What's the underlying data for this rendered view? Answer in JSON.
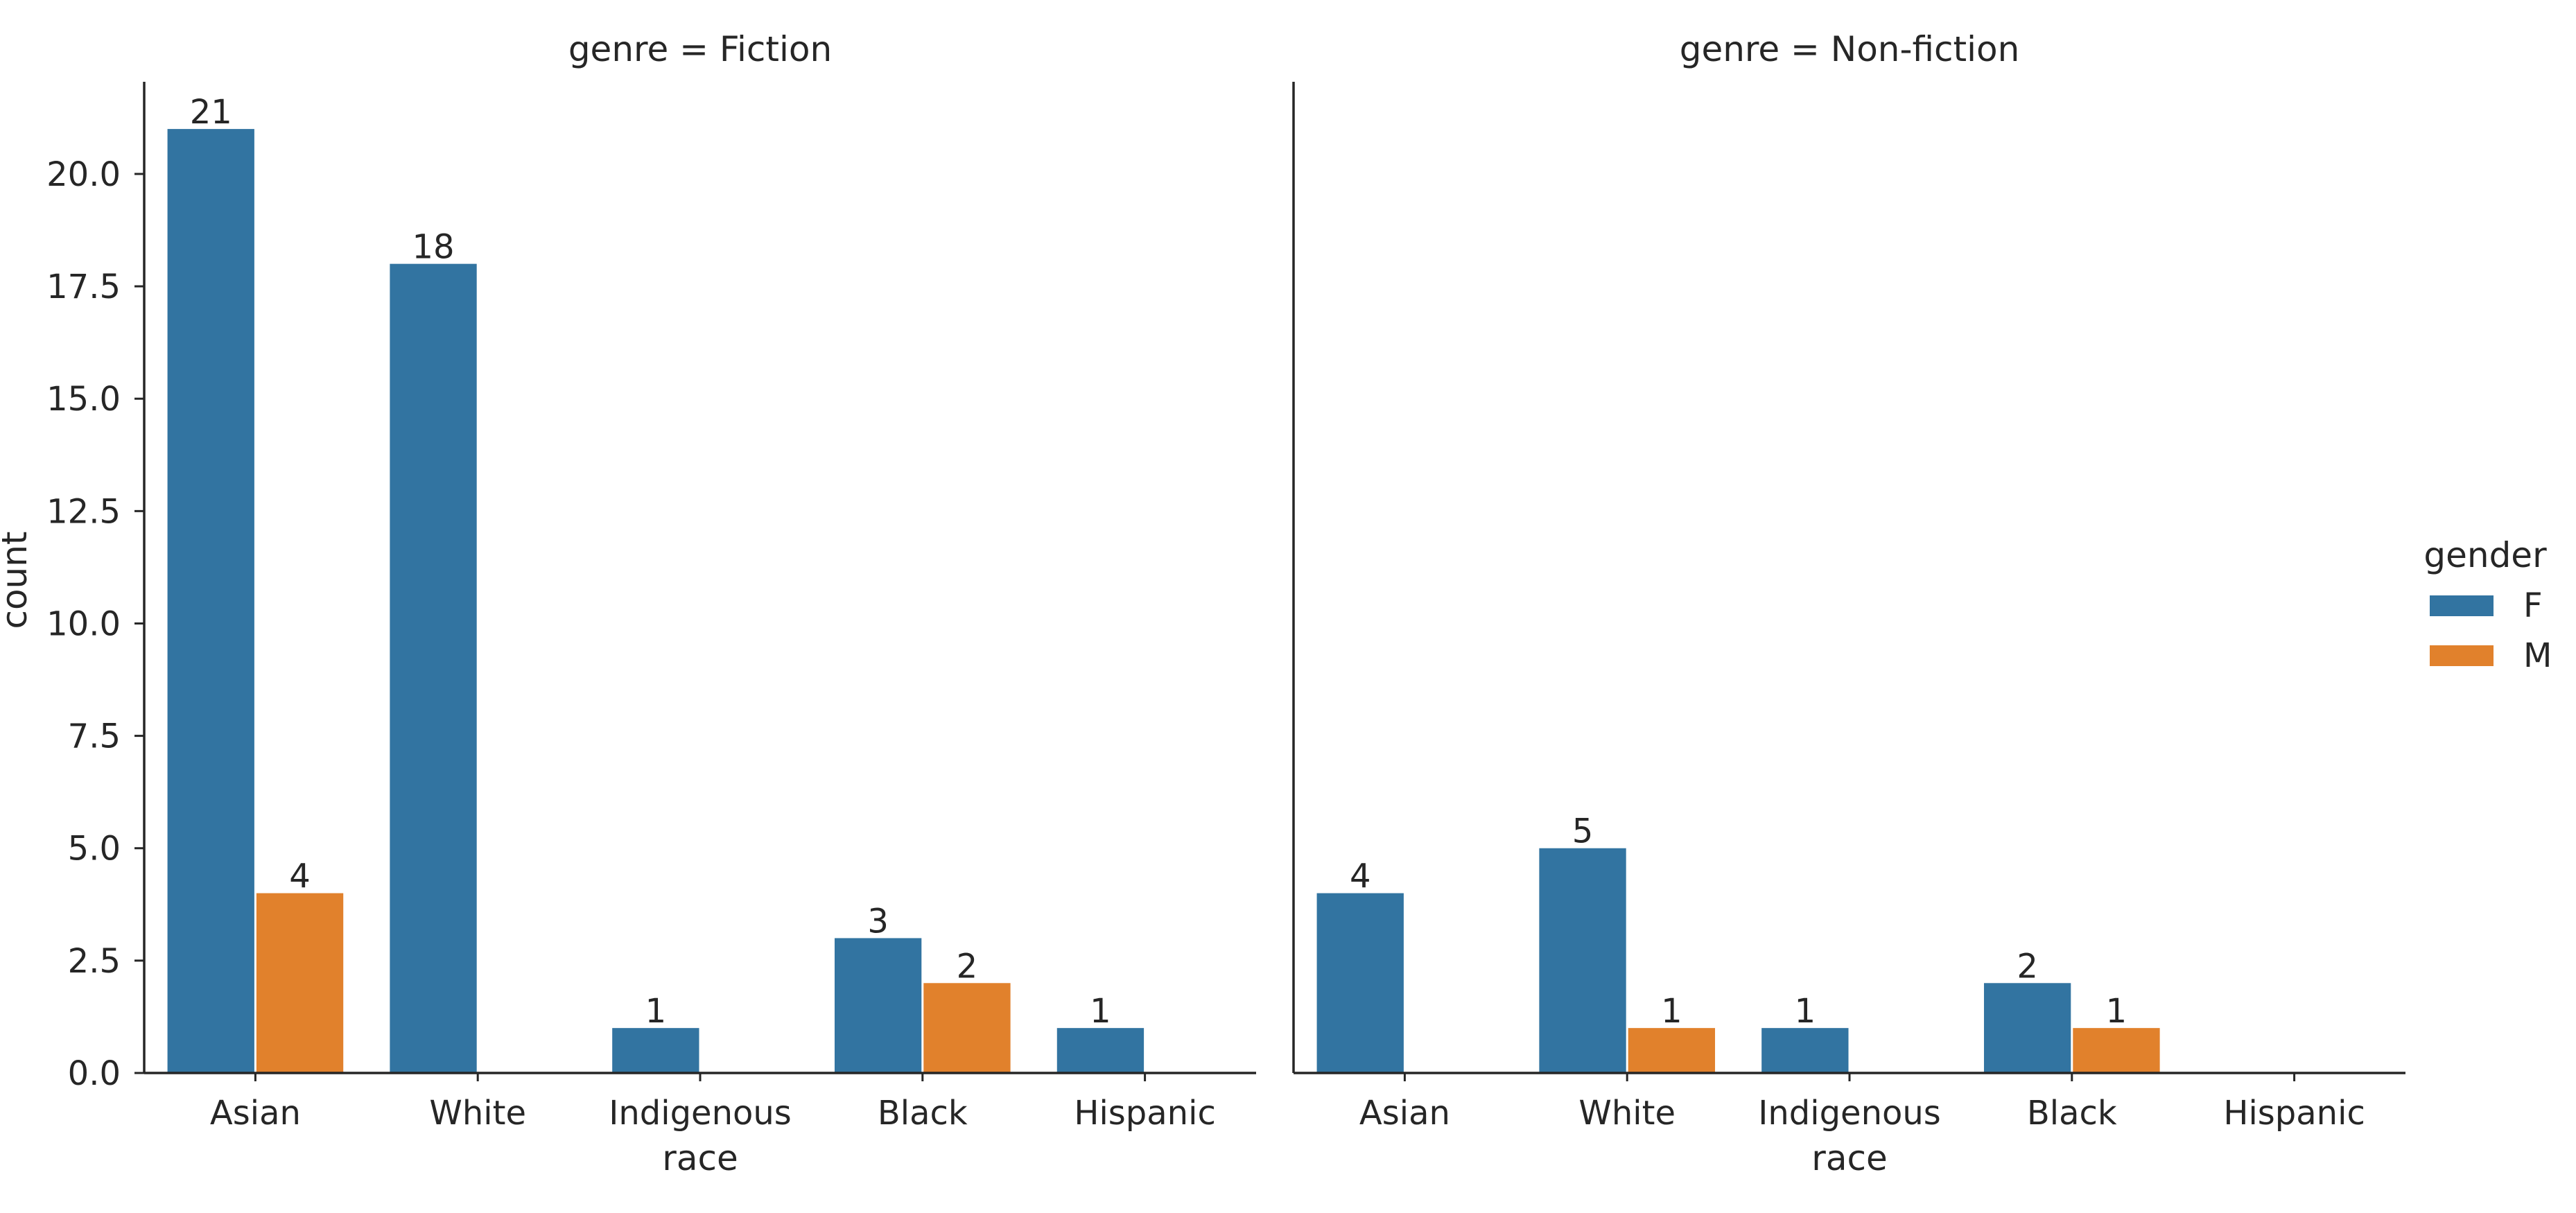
{
  "chart_data": {
    "type": "bar",
    "ylabel": "count",
    "xlabel": "race",
    "ylim": [
      0,
      22.05
    ],
    "yticks": [
      "0.0",
      "2.5",
      "5.0",
      "7.5",
      "10.0",
      "12.5",
      "15.0",
      "17.5",
      "20.0"
    ],
    "ytick_values": [
      0,
      2.5,
      5,
      7.5,
      10,
      12.5,
      15,
      17.5,
      20
    ],
    "categories": [
      "Asian",
      "White",
      "Indigenous",
      "Black",
      "Hispanic"
    ],
    "legend": {
      "title": "gender",
      "position": "right",
      "entries": [
        {
          "name": "F",
          "color": "#3274a1"
        },
        {
          "name": "M",
          "color": "#e1812c"
        }
      ]
    },
    "facets": [
      {
        "title": "genre = Fiction",
        "series": [
          {
            "name": "F",
            "values": [
              21,
              18,
              1,
              3,
              1
            ]
          },
          {
            "name": "M",
            "values": [
              4,
              0,
              0,
              2,
              0
            ]
          }
        ],
        "labels": [
          [
            "21",
            "18",
            "1",
            "3",
            "1"
          ],
          [
            "4",
            "",
            "",
            "2",
            ""
          ]
        ]
      },
      {
        "title": "genre = Non-fiction",
        "series": [
          {
            "name": "F",
            "values": [
              4,
              5,
              1,
              2,
              0
            ]
          },
          {
            "name": "M",
            "values": [
              0,
              1,
              0,
              1,
              0
            ]
          }
        ],
        "labels": [
          [
            "4",
            "5",
            "1",
            "2",
            ""
          ],
          [
            "",
            "1",
            "",
            "1",
            ""
          ]
        ]
      }
    ]
  }
}
